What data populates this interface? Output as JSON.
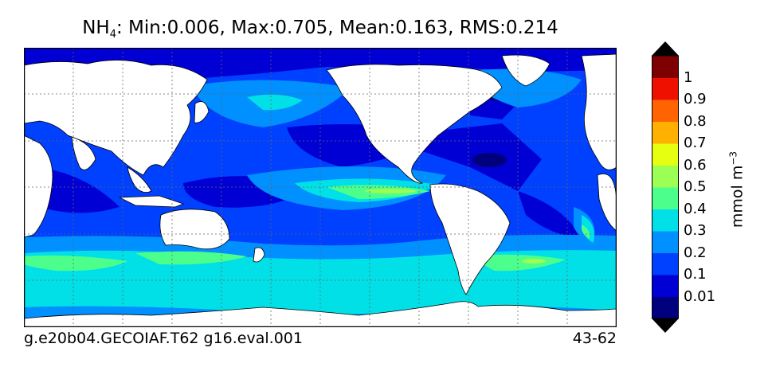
{
  "title": {
    "species": "NH",
    "subscript": "4",
    "stats": ": Min:0.006, Max:0.705, Mean:0.163, RMS:0.214"
  },
  "footer": {
    "case_name": "g.e20b04.GECOIAF.T62 g16.eval.001",
    "years": "43-62"
  },
  "colorbar": {
    "unit_base": "mmol m",
    "unit_exponent": "−3",
    "tick_labels": [
      "0.01",
      "0.1",
      "0.2",
      "0.3",
      "0.4",
      "0.5",
      "0.6",
      "0.7",
      "0.8",
      "0.9",
      "1"
    ],
    "colors": [
      "#00007f",
      "#0000d5",
      "#0040ff",
      "#0090ff",
      "#00e0e6",
      "#4cff8c",
      "#9cff53",
      "#e6ff10",
      "#ffb000",
      "#ff6400",
      "#f01000",
      "#7f0000"
    ],
    "under_color": "#000000",
    "over_color": "#000000"
  },
  "map": {
    "projection": "plate-carree-pacific-centered",
    "land_color": "#ffffff",
    "gridlines": "dotted"
  }
}
